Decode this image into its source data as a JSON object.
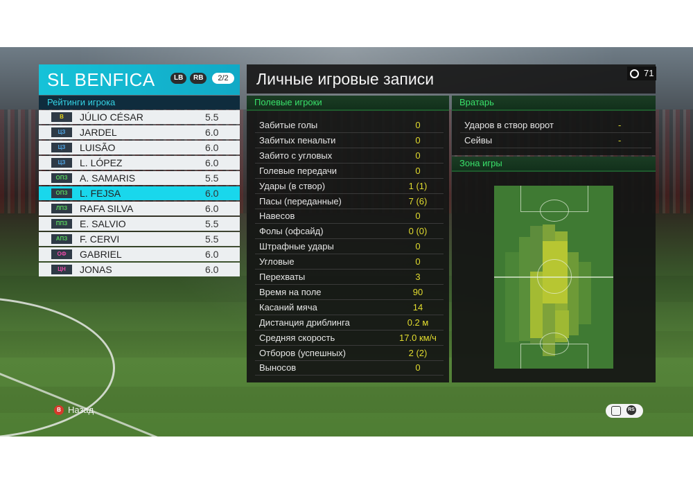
{
  "team": {
    "name": "SL BENFICA",
    "lb_label": "LB",
    "rb_label": "RB",
    "page_indicator": "2/2",
    "ratings_title": "Рейтинги игрока",
    "players": [
      {
        "position": "В",
        "pos_color": "#e6d419",
        "name": "JÚLIO CÉSAR",
        "rating": "5.5"
      },
      {
        "position": "ЦЗ",
        "pos_color": "#4fa6e6",
        "name": "JARDEL",
        "rating": "6.0"
      },
      {
        "position": "ЦЗ",
        "pos_color": "#4fa6e6",
        "name": "LUISÃO",
        "rating": "6.0"
      },
      {
        "position": "ЦЗ",
        "pos_color": "#4fa6e6",
        "name": "L. LÓPEZ",
        "rating": "6.0"
      },
      {
        "position": "ОПЗ",
        "pos_color": "#58d05e",
        "name": "A. SAMARIS",
        "rating": "5.5"
      },
      {
        "position": "ОПЗ",
        "pos_color": "#58d05e",
        "name": "L. FEJSA",
        "rating": "6.0"
      },
      {
        "position": "ЛПЗ",
        "pos_color": "#58d05e",
        "name": "RAFA SILVA",
        "rating": "6.0"
      },
      {
        "position": "ППЗ",
        "pos_color": "#58d05e",
        "name": "E. SALVIO",
        "rating": "5.5"
      },
      {
        "position": "АПЗ",
        "pos_color": "#58d05e",
        "name": "F. CERVI",
        "rating": "5.5"
      },
      {
        "position": "ОФ",
        "pos_color": "#e84aa6",
        "name": "GABRIEL",
        "rating": "6.0"
      },
      {
        "position": "ЦН",
        "pos_color": "#e84aa6",
        "name": "JONAS",
        "rating": "6.0"
      }
    ],
    "selected_index": 5
  },
  "header": {
    "title": "Личные игровые записи",
    "timer": "71"
  },
  "field_players": {
    "title": "Полевые игроки",
    "stats": [
      {
        "label": "Забитые голы",
        "value": "0"
      },
      {
        "label": "Забитых пенальти",
        "value": "0"
      },
      {
        "label": "Забито с угловых",
        "value": "0"
      },
      {
        "label": "Голевые передачи",
        "value": "0"
      },
      {
        "label": "Удары (в створ)",
        "value": "1 (1)"
      },
      {
        "label": "Пасы (переданные)",
        "value": "7 (6)"
      },
      {
        "label": "Навесов",
        "value": "0"
      },
      {
        "label": "Фолы (офсайд)",
        "value": "0 (0)"
      },
      {
        "label": "Штрафные удары",
        "value": "0"
      },
      {
        "label": "Угловые",
        "value": "0"
      },
      {
        "label": "Перехваты",
        "value": "3"
      },
      {
        "label": "Время на поле",
        "value": "90"
      },
      {
        "label": "Касаний мяча",
        "value": "14"
      },
      {
        "label": "Дистанция дриблинга",
        "value": "0.2 м"
      },
      {
        "label": "Средняя скорость",
        "value": "17.0 км/ч"
      },
      {
        "label": "Отборов (успешных)",
        "value": "2 (2)"
      },
      {
        "label": "Выносов",
        "value": "0"
      }
    ]
  },
  "goalkeeper": {
    "title": "Вратарь",
    "stats": [
      {
        "label": "Ударов в створ ворот",
        "value": "-"
      },
      {
        "label": "Сейвы",
        "value": "-"
      }
    ]
  },
  "zone": {
    "title": "Зона игры"
  },
  "footer": {
    "back_button": "B",
    "back_label": "Назад",
    "rs_label": "RS"
  },
  "colors": {
    "accent_cyan": "#19d7ec",
    "stat_value": "#e2dc2f",
    "section_title": "#39e06a",
    "back_button": "#d63a2c"
  }
}
